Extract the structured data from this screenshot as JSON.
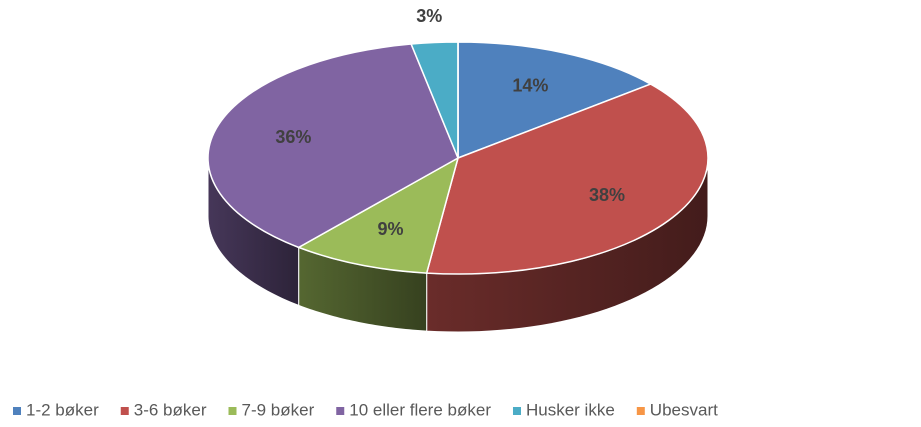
{
  "chart_data": {
    "type": "pie",
    "three_d": true,
    "categories": [
      "1-2 bøker",
      "3-6 bøker",
      "7-9 bøker",
      "10 eller flere bøker",
      "Husker ikke",
      "Ubesvart"
    ],
    "values": [
      14,
      38,
      9,
      36,
      3,
      0
    ],
    "value_labels": [
      "14%",
      "38%",
      "9%",
      "36%",
      "3%",
      null
    ],
    "colors": [
      "#4f81bd",
      "#c0504d",
      "#9bbb59",
      "#8064a2",
      "#4bacc6",
      "#f79646"
    ],
    "legend": "bottom"
  }
}
